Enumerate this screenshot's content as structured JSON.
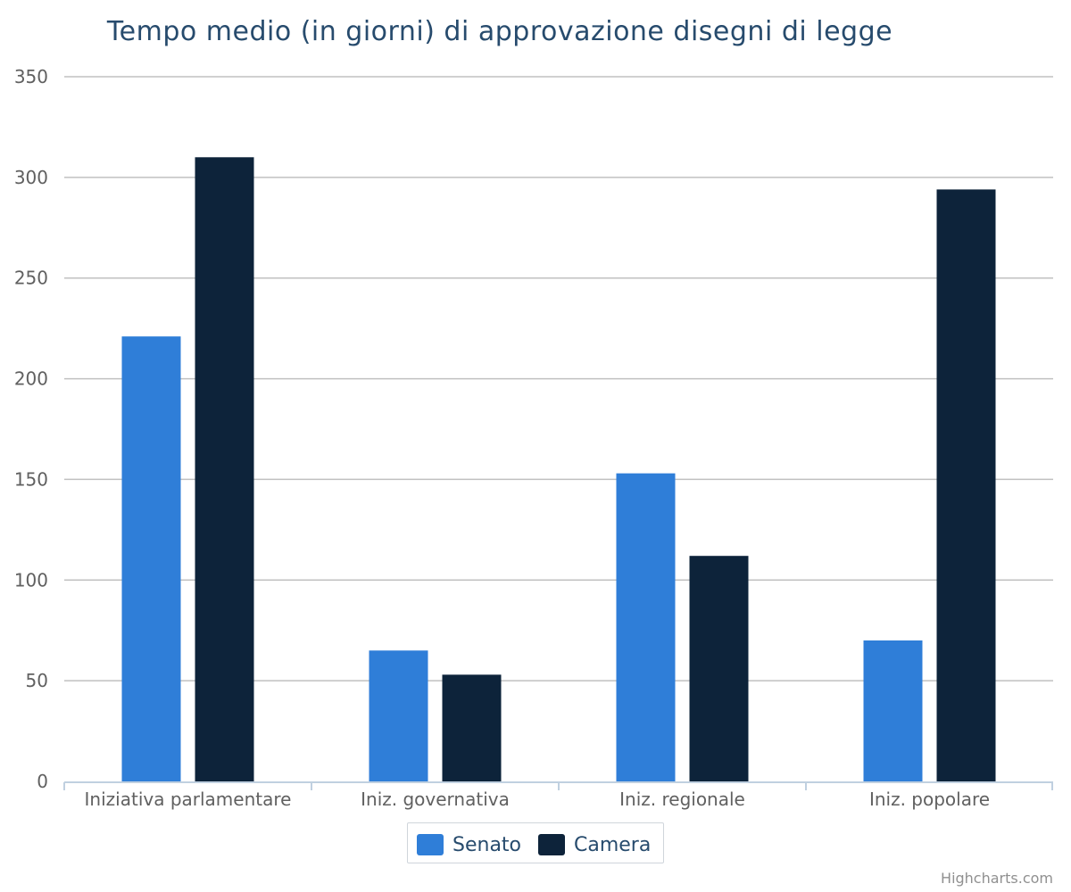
{
  "chart_data": {
    "type": "bar",
    "title": "Tempo medio (in giorni) di approvazione disegni di legge",
    "xlabel": "",
    "ylabel": "",
    "categories": [
      "Iniziativa parlamentare",
      "Iniz. governativa",
      "Iniz. regionale",
      "Iniz. popolare"
    ],
    "series": [
      {
        "name": "Senato",
        "color": "#2f7ed8",
        "values": [
          221,
          65,
          153,
          70
        ]
      },
      {
        "name": "Camera",
        "color": "#0d233a",
        "values": [
          310,
          53,
          112,
          294
        ]
      }
    ],
    "ylim": [
      0,
      350
    ],
    "yticks": [
      "0",
      "50",
      "100",
      "150",
      "200",
      "250",
      "300",
      "350"
    ],
    "grid": true,
    "legend_position": "bottom-center"
  },
  "legend": {
    "items": [
      {
        "label": "Senato",
        "color": "#2f7ed8"
      },
      {
        "label": "Camera",
        "color": "#0d233a"
      }
    ]
  },
  "credits": "Highcharts.com"
}
